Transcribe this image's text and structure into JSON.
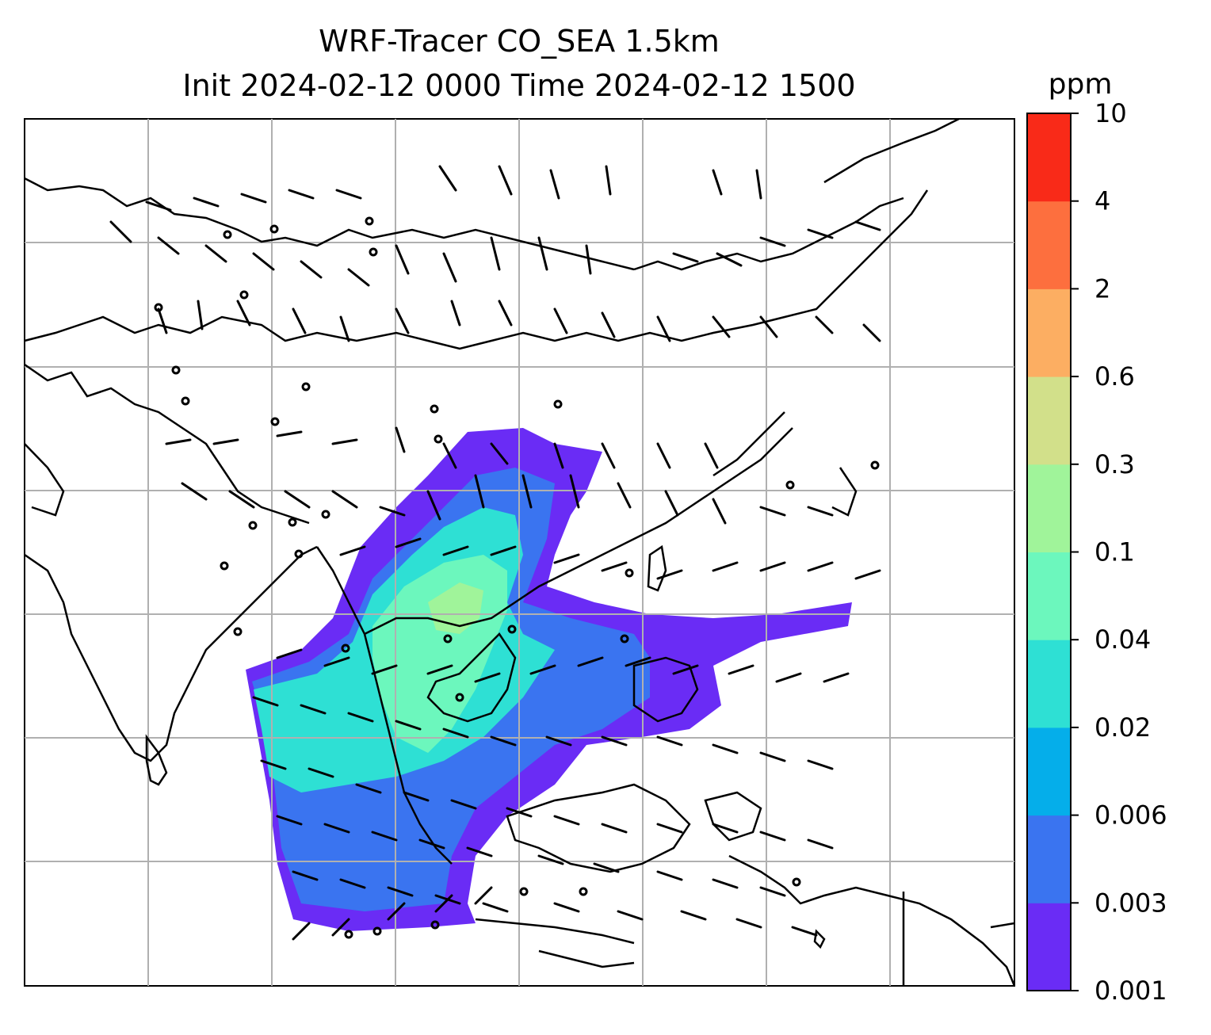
{
  "title": {
    "line1": "WRF-Tracer CO_SEA 1.5km",
    "line2": "Init 2024-02-12 0000 Time 2024-02-12 1500"
  },
  "colorbar": {
    "unit": "ppm",
    "levels": [
      "0.001",
      "0.003",
      "0.006",
      "0.02",
      "0.04",
      "0.1",
      "0.3",
      "0.6",
      "2",
      "4",
      "10"
    ],
    "colors": [
      "#6a2cf5",
      "#3a74f0",
      "#05aeea",
      "#2ee0d4",
      "#6cf7bd",
      "#a0f49a",
      "#d2e08a",
      "#fcae62",
      "#fd6f3e",
      "#f92a18"
    ]
  },
  "map": {
    "gridline_color": "#b0b0b0",
    "coastline_color": "#000000",
    "barb_color": "#000000",
    "plume_description_colors": [
      "#6a2cf5",
      "#3a74f0",
      "#2ee0d4",
      "#6cf7bd",
      "#a0f49a"
    ]
  }
}
